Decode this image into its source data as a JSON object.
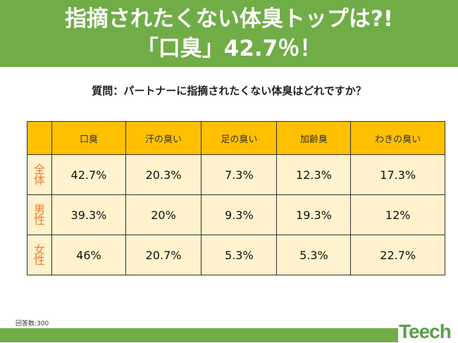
{
  "title": {
    "line1": "指摘されたくない体臭トップは?!",
    "line2": "「口臭」42.7％！"
  },
  "question": "質問：パートナーに指摘されたくない体臭はどれですか？",
  "table": {
    "headers": [
      "口臭",
      "汗の臭い",
      "足の臭い",
      "加齢臭",
      "わきの臭い"
    ],
    "rows": [
      {
        "label": "全\n体",
        "label_a": "全",
        "label_b": "体",
        "values": [
          "42.7%",
          "20.3%",
          "7.3%",
          "12.3%",
          "17.3%"
        ]
      },
      {
        "label_a": "男",
        "label_b": "性",
        "values": [
          "39.3%",
          "20%",
          "9.3%",
          "19.3%",
          "12%"
        ]
      },
      {
        "label_a": "女",
        "label_b": "性",
        "values": [
          "46%",
          "20.7%",
          "5.3%",
          "5.3%",
          "22.7%"
        ]
      }
    ]
  },
  "note": "回答数:300",
  "logo": "Teech",
  "colors": {
    "green": "#70ad47",
    "header": "#ffc000",
    "cell": "#fff2cc",
    "label": "#ed7d31"
  }
}
